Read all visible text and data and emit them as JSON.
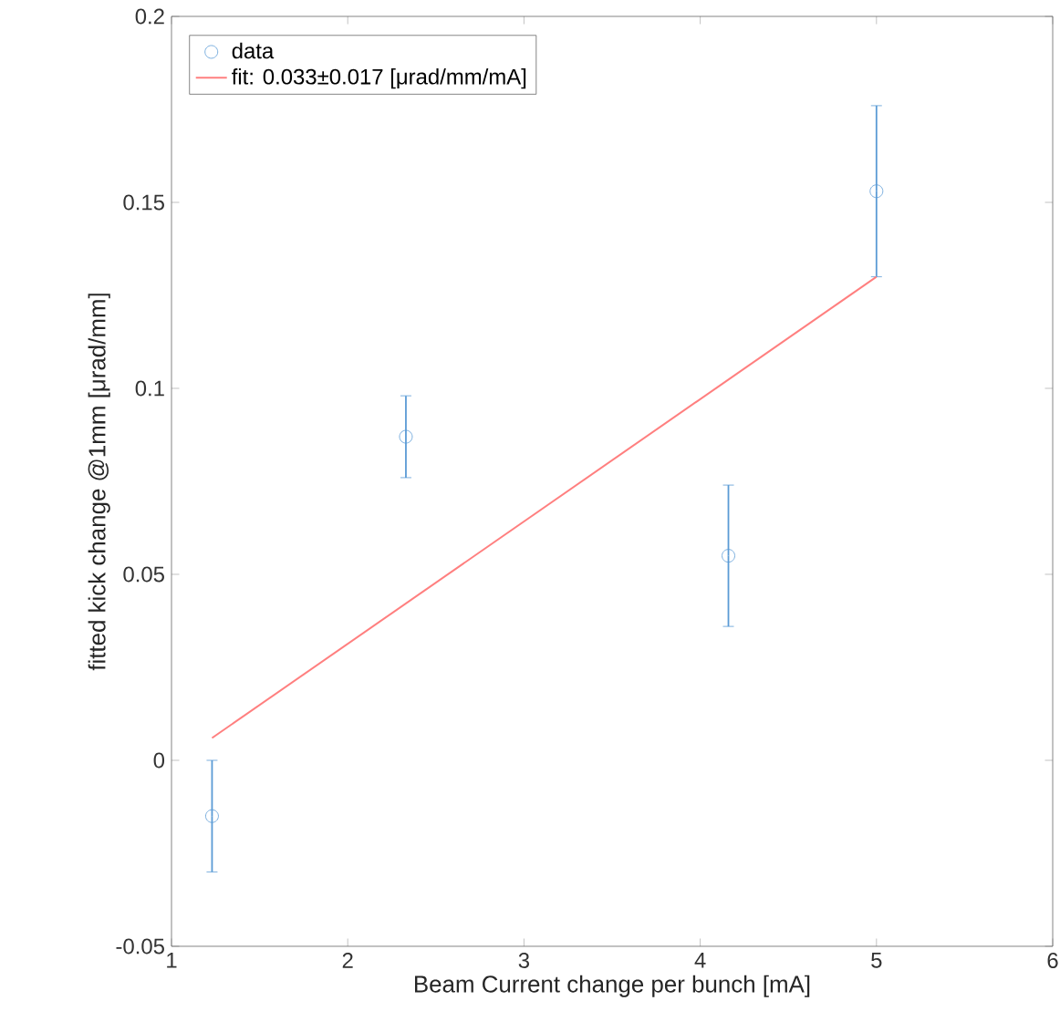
{
  "chart_data": {
    "type": "scatter",
    "xlabel": "Beam Current change per bunch [mA]",
    "ylabel": "fitted kick change @1mm [μrad/mm]",
    "xlim": [
      1,
      6
    ],
    "xticks": [
      1,
      2,
      3,
      4,
      5,
      6
    ],
    "ylim": [
      -0.05,
      0.2
    ],
    "yticks": [
      -0.05,
      0,
      0.05,
      0.1,
      0.15,
      0.2
    ],
    "legend": "top left",
    "series": [
      {
        "name": "data",
        "marker": "circle",
        "color": "#5b9bd5",
        "x": [
          1.23,
          2.33,
          4.16,
          5.0
        ],
        "values": [
          -0.015,
          0.087,
          0.055,
          0.153
        ],
        "errors": [
          0.015,
          0.011,
          0.019,
          0.023
        ]
      },
      {
        "name": "fit: 0.033±0.017 [μrad/mm/mA]",
        "type": "line",
        "color": "#ff7f7f",
        "x": [
          1.23,
          5.0
        ],
        "values": [
          0.006,
          0.13
        ]
      }
    ]
  }
}
